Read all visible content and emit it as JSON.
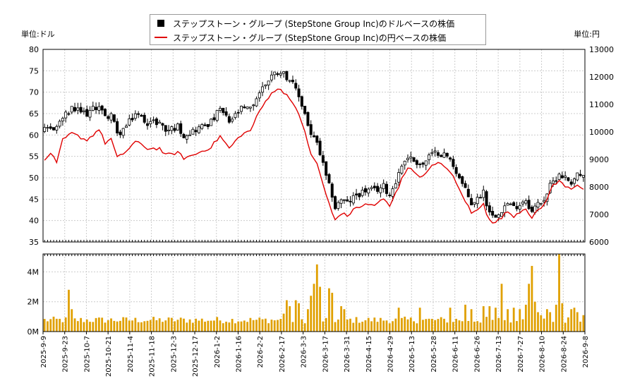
{
  "legend": {
    "usd_label": "ステップストーン・グループ (StepStone Group Inc)のドルベースの株価",
    "jpy_label": "ステップストーン・グループ (StepStone Group Inc)の円ベースの株価"
  },
  "units": {
    "left": "単位:ドル",
    "right": "単位:円"
  },
  "colors": {
    "usd": "#000000",
    "jpy": "#e00000",
    "volume": "#e0a000",
    "grid": "#cccccc"
  },
  "chart_data": [
    {
      "type": "line",
      "x_ticks": [
        "2025-9-9",
        "2025-9-23",
        "2025-10-7",
        "2025-10-21",
        "2025-11-4",
        "2025-11-18",
        "2025-12-3",
        "2025-12-17",
        "2026-1-2",
        "2026-1-16",
        "2026-2-2",
        "2026-2-17",
        "2026-3-3",
        "2026-3-17",
        "2026-3-31",
        "2026-4-15",
        "2026-4-29",
        "2026-5-13",
        "2026-5-28",
        "2026-6-11",
        "2026-6-26",
        "2026-7-13",
        "2026-7-27",
        "2026-8-10",
        "2026-8-24",
        "2026-9-8"
      ],
      "y_left": {
        "label": "単位:ドル",
        "ticks": [
          35,
          40,
          45,
          50,
          55,
          60,
          65,
          70,
          75,
          80
        ],
        "lim": [
          35,
          80
        ]
      },
      "y_right": {
        "label": "単位:円",
        "ticks": [
          6000,
          7000,
          8000,
          9000,
          10000,
          11000,
          12000,
          13000
        ],
        "lim": [
          6000,
          13000
        ]
      },
      "series": [
        {
          "name": "ステップストーン・グループ (StepStone Group Inc)のドルベースの株価",
          "axis": "left",
          "kind": "candlestick",
          "knots": [
            [
              0,
              61
            ],
            [
              4,
              62
            ],
            [
              6,
              64
            ],
            [
              9,
              66
            ],
            [
              14,
              65
            ],
            [
              18,
              67
            ],
            [
              20,
              64
            ],
            [
              22,
              65
            ],
            [
              24,
              60
            ],
            [
              27,
              62
            ],
            [
              30,
              65
            ],
            [
              34,
              63
            ],
            [
              38,
              63
            ],
            [
              40,
              61
            ],
            [
              44,
              62
            ],
            [
              46,
              60
            ],
            [
              49,
              61
            ],
            [
              52,
              62
            ],
            [
              55,
              63
            ],
            [
              58,
              66
            ],
            [
              61,
              63
            ],
            [
              65,
              66
            ],
            [
              68,
              66
            ],
            [
              71,
              70
            ],
            [
              75,
              74
            ],
            [
              78,
              75
            ],
            [
              81,
              73
            ],
            [
              84,
              69
            ],
            [
              86,
              65
            ],
            [
              88,
              60
            ],
            [
              90,
              58
            ],
            [
              92,
              53
            ],
            [
              93,
              50
            ],
            [
              95,
              46
            ],
            [
              96,
              43
            ],
            [
              98,
              45
            ],
            [
              100,
              44
            ],
            [
              103,
              46
            ],
            [
              106,
              47
            ],
            [
              109,
              47
            ],
            [
              112,
              48
            ],
            [
              114,
              46
            ],
            [
              117,
              51
            ],
            [
              118,
              53
            ],
            [
              120,
              55
            ],
            [
              122,
              54
            ],
            [
              125,
              53
            ],
            [
              127,
              55
            ],
            [
              130,
              56
            ],
            [
              133,
              55
            ],
            [
              135,
              53
            ],
            [
              137,
              50
            ],
            [
              139,
              47
            ],
            [
              141,
              44
            ],
            [
              143,
              45
            ],
            [
              145,
              47
            ],
            [
              146,
              44
            ],
            [
              148,
              41
            ],
            [
              150,
              42
            ],
            [
              153,
              44
            ],
            [
              155,
              43
            ],
            [
              157,
              44
            ],
            [
              159,
              45
            ],
            [
              161,
              42
            ],
            [
              163,
              44
            ],
            [
              165,
              45
            ],
            [
              167,
              48
            ],
            [
              168,
              49
            ],
            [
              170,
              51
            ],
            [
              172,
              50
            ],
            [
              174,
              49
            ],
            [
              176,
              51
            ],
            [
              178,
              50
            ]
          ]
        },
        {
          "name": "ステップストーン・グループ (StepStone Group Inc)の円ベースの株価",
          "axis": "right",
          "knots": [
            [
              0,
              8950
            ],
            [
              2,
              9250
            ],
            [
              4,
              8850
            ],
            [
              6,
              9700
            ],
            [
              9,
              9950
            ],
            [
              14,
              9700
            ],
            [
              18,
              10100
            ],
            [
              20,
              9600
            ],
            [
              22,
              9750
            ],
            [
              24,
              9050
            ],
            [
              27,
              9300
            ],
            [
              30,
              9650
            ],
            [
              34,
              9400
            ],
            [
              38,
              9400
            ],
            [
              40,
              9150
            ],
            [
              44,
              9250
            ],
            [
              46,
              9050
            ],
            [
              49,
              9150
            ],
            [
              52,
              9300
            ],
            [
              55,
              9450
            ],
            [
              58,
              9850
            ],
            [
              61,
              9400
            ],
            [
              65,
              9900
            ],
            [
              68,
              10050
            ],
            [
              71,
              10750
            ],
            [
              75,
              11450
            ],
            [
              78,
              11550
            ],
            [
              81,
              11250
            ],
            [
              84,
              10600
            ],
            [
              86,
              10050
            ],
            [
              88,
              9150
            ],
            [
              90,
              8850
            ],
            [
              92,
              8100
            ],
            [
              93,
              7700
            ],
            [
              95,
              7050
            ],
            [
              96,
              6800
            ],
            [
              98,
              7050
            ],
            [
              100,
              6950
            ],
            [
              103,
              7250
            ],
            [
              106,
              7350
            ],
            [
              109,
              7350
            ],
            [
              112,
              7550
            ],
            [
              114,
              7300
            ],
            [
              117,
              8000
            ],
            [
              118,
              8350
            ],
            [
              120,
              8700
            ],
            [
              122,
              8550
            ],
            [
              125,
              8350
            ],
            [
              127,
              8700
            ],
            [
              130,
              8850
            ],
            [
              133,
              8700
            ],
            [
              135,
              8350
            ],
            [
              137,
              7900
            ],
            [
              139,
              7500
            ],
            [
              141,
              7050
            ],
            [
              143,
              7150
            ],
            [
              145,
              7450
            ],
            [
              146,
              7050
            ],
            [
              148,
              6650
            ],
            [
              150,
              6800
            ],
            [
              153,
              7100
            ],
            [
              155,
              6950
            ],
            [
              157,
              7100
            ],
            [
              159,
              7250
            ],
            [
              161,
              6850
            ],
            [
              163,
              7150
            ],
            [
              165,
              7350
            ],
            [
              167,
              7850
            ],
            [
              168,
              8050
            ],
            [
              170,
              8200
            ],
            [
              172,
              8050
            ],
            [
              174,
              7950
            ],
            [
              176,
              8100
            ],
            [
              178,
              7900
            ]
          ]
        }
      ],
      "volume": {
        "axis_label_ticks": [
          "0M",
          "2M",
          "4M"
        ],
        "ylim": [
          0,
          5.2
        ],
        "peaks": [
          [
            8,
            2.8
          ],
          [
            9,
            1.5
          ],
          [
            79,
            1.2
          ],
          [
            80,
            2.1
          ],
          [
            81,
            1.7
          ],
          [
            83,
            2.1
          ],
          [
            84,
            1.9
          ],
          [
            87,
            1.5
          ],
          [
            88,
            2.4
          ],
          [
            89,
            3.2
          ],
          [
            90,
            4.5
          ],
          [
            91,
            3.0
          ],
          [
            94,
            2.9
          ],
          [
            95,
            2.6
          ],
          [
            98,
            1.7
          ],
          [
            99,
            1.5
          ],
          [
            117,
            1.6
          ],
          [
            124,
            1.6
          ],
          [
            134,
            1.6
          ],
          [
            139,
            1.8
          ],
          [
            141,
            1.5
          ],
          [
            145,
            1.7
          ],
          [
            147,
            1.7
          ],
          [
            149,
            1.6
          ],
          [
            151,
            3.2
          ],
          [
            153,
            1.5
          ],
          [
            155,
            1.6
          ],
          [
            157,
            1.5
          ],
          [
            159,
            1.8
          ],
          [
            160,
            3.2
          ],
          [
            161,
            4.4
          ],
          [
            162,
            2.0
          ],
          [
            163,
            1.3
          ],
          [
            164,
            1.1
          ],
          [
            166,
            1.5
          ],
          [
            167,
            1.3
          ],
          [
            169,
            1.8
          ],
          [
            170,
            5.2
          ],
          [
            171,
            1.9
          ],
          [
            174,
            1.5
          ],
          [
            175,
            1.6
          ],
          [
            176,
            1.3
          ],
          [
            178,
            1.1
          ]
        ],
        "base": 0.55
      }
    }
  ]
}
